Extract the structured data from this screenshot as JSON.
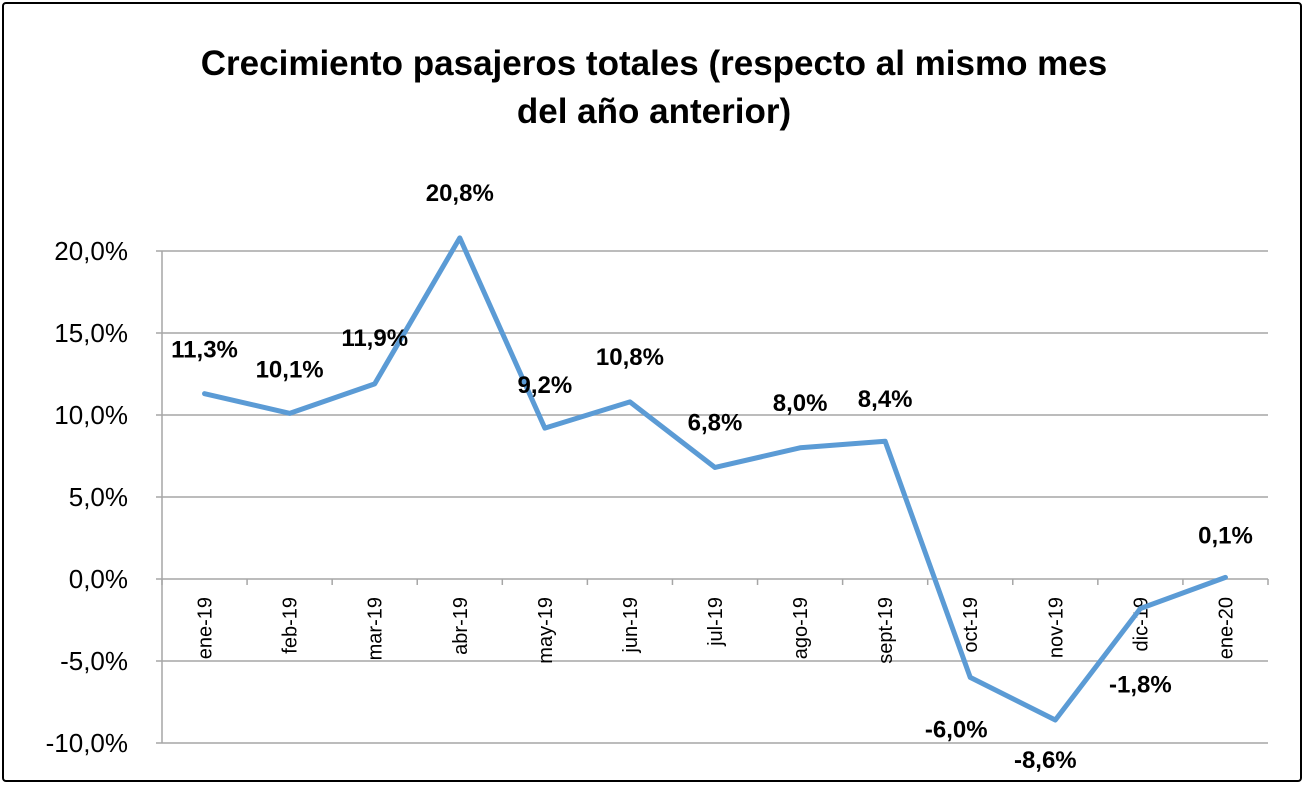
{
  "chart_data": {
    "type": "line",
    "title_line1": "Crecimiento pasajeros totales (respecto al mismo mes",
    "title_line2": "del año anterior)",
    "xlabel": "",
    "ylabel": "",
    "categories": [
      "ene-19",
      "feb-19",
      "mar-19",
      "abr-19",
      "may-19",
      "jun-19",
      "jul-19",
      "ago-19",
      "sept-19",
      "oct-19",
      "nov-19",
      "dic-19",
      "ene-20"
    ],
    "series": [
      {
        "name": "Crecimiento pasajeros totales",
        "values": [
          11.3,
          10.1,
          11.9,
          20.8,
          9.2,
          10.8,
          6.8,
          8.0,
          8.4,
          -6.0,
          -8.6,
          -1.8,
          0.1
        ],
        "color": "#5B9BD5"
      }
    ],
    "data_labels": [
      "11,3%",
      "10,1%",
      "11,9%",
      "20,8%",
      "9,2%",
      "10,8%",
      "6,8%",
      "8,0%",
      "8,4%",
      "-6,0%",
      "-8,6%",
      "-1,8%",
      "0,1%"
    ],
    "ylim": [
      -10,
      20
    ],
    "yticks": [
      20,
      15,
      10,
      5,
      0,
      -5,
      -10
    ],
    "ytick_labels": [
      "20,0%",
      "15,0%",
      "10,0%",
      "5,0%",
      "0,0%",
      "-5,0%",
      "-10,0%"
    ],
    "grid": true,
    "legend": "none"
  }
}
